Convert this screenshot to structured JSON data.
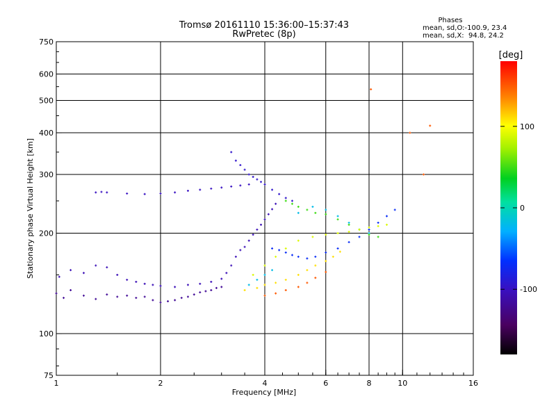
{
  "chart_data": {
    "type": "scatter",
    "title_line1": "Tromsø 20161110 15:36:00–15:37:43",
    "title_line2": "RwPretec (8p)",
    "xlabel": "Frequency [MHz]",
    "ylabel": "Stationary phase Virtual Height [km]",
    "x_scale": "log",
    "y_scale": "log",
    "xlim": [
      1,
      16
    ],
    "ylim": [
      75,
      750
    ],
    "x_ticks": [
      1,
      2,
      4,
      6,
      8,
      10,
      16
    ],
    "x_tick_labels": [
      "1",
      "2",
      "4",
      "6",
      "8",
      "10",
      "16"
    ],
    "x_gridlines": [
      2,
      4,
      6,
      8,
      10
    ],
    "y_ticks": [
      75,
      100,
      200,
      300,
      400,
      500,
      600,
      750
    ],
    "y_tick_labels": [
      "75",
      "100",
      "200",
      "300",
      "400",
      "500",
      "600",
      "750"
    ],
    "y_gridlines": [
      100,
      200,
      300,
      400,
      500,
      600
    ],
    "grid": true,
    "phases_box": {
      "title": "Phases",
      "line1": "mean, sd,O:-100.9, 23.4",
      "line2": "mean, sd,X:  94.8, 24.2"
    },
    "colorbar": {
      "label": "[deg]",
      "range": [
        -180,
        180
      ],
      "ticks": [
        100,
        0,
        -100
      ],
      "tick_labels": [
        "100",
        "0",
        "-100"
      ],
      "colormap": "rainbow (black → purple → blue → cyan → green → yellow → orange → red)"
    },
    "series": [
      {
        "phase_deg": -120,
        "points": [
          [
            1.0,
            132
          ],
          [
            1.05,
            128
          ],
          [
            1.1,
            135
          ],
          [
            1.2,
            130
          ],
          [
            1.3,
            127
          ],
          [
            1.4,
            131
          ],
          [
            1.5,
            129
          ],
          [
            1.6,
            130
          ],
          [
            1.7,
            128
          ],
          [
            1.8,
            129
          ],
          [
            1.9,
            126
          ],
          [
            2.0,
            124
          ],
          [
            2.1,
            125
          ],
          [
            2.2,
            126
          ],
          [
            2.3,
            128
          ],
          [
            2.4,
            129
          ],
          [
            2.5,
            131
          ],
          [
            2.6,
            133
          ],
          [
            2.7,
            134
          ],
          [
            2.8,
            135
          ],
          [
            2.9,
            137
          ],
          [
            3.0,
            138
          ]
        ]
      },
      {
        "phase_deg": -105,
        "points": [
          [
            1.02,
            148
          ],
          [
            1.1,
            155
          ],
          [
            1.2,
            152
          ],
          [
            1.3,
            160
          ],
          [
            1.4,
            158
          ],
          [
            1.5,
            150
          ],
          [
            1.6,
            145
          ],
          [
            1.7,
            143
          ],
          [
            1.8,
            141
          ],
          [
            1.9,
            140
          ],
          [
            2.0,
            139
          ],
          [
            2.2,
            138
          ],
          [
            2.4,
            140
          ],
          [
            2.6,
            141
          ],
          [
            2.8,
            143
          ],
          [
            3.0,
            146
          ],
          [
            3.1,
            152
          ],
          [
            3.2,
            160
          ],
          [
            3.3,
            170
          ],
          [
            3.4,
            178
          ],
          [
            3.5,
            182
          ],
          [
            3.6,
            190
          ],
          [
            3.7,
            198
          ],
          [
            3.8,
            205
          ],
          [
            3.9,
            212
          ],
          [
            4.0,
            220
          ],
          [
            4.1,
            228
          ],
          [
            4.2,
            236
          ],
          [
            4.3,
            245
          ]
        ]
      },
      {
        "phase_deg": -100,
        "points": [
          [
            1.3,
            265
          ],
          [
            1.35,
            266
          ],
          [
            1.4,
            265
          ],
          [
            1.6,
            263
          ],
          [
            1.8,
            262
          ],
          [
            2.0,
            263
          ],
          [
            2.2,
            265
          ],
          [
            2.4,
            268
          ],
          [
            2.6,
            270
          ],
          [
            2.8,
            272
          ],
          [
            3.0,
            274
          ],
          [
            3.2,
            276
          ],
          [
            3.4,
            278
          ],
          [
            3.6,
            280
          ]
        ]
      },
      {
        "phase_deg": -95,
        "points": [
          [
            3.2,
            350
          ],
          [
            3.3,
            330
          ],
          [
            3.4,
            320
          ],
          [
            3.5,
            310
          ],
          [
            3.6,
            300
          ],
          [
            3.7,
            295
          ],
          [
            3.8,
            290
          ],
          [
            3.9,
            285
          ],
          [
            4.0,
            280
          ],
          [
            4.2,
            270
          ],
          [
            4.4,
            262
          ],
          [
            4.6,
            255
          ],
          [
            4.8,
            250
          ]
        ]
      },
      {
        "phase_deg": -70,
        "points": [
          [
            4.2,
            180
          ],
          [
            4.4,
            178
          ],
          [
            4.6,
            175
          ],
          [
            4.8,
            172
          ],
          [
            5.0,
            170
          ],
          [
            5.3,
            168
          ],
          [
            5.6,
            170
          ],
          [
            6.0,
            175
          ],
          [
            6.5,
            180
          ],
          [
            7.0,
            188
          ],
          [
            7.5,
            195
          ],
          [
            8.0,
            205
          ],
          [
            8.5,
            215
          ],
          [
            9.0,
            225
          ],
          [
            9.5,
            235
          ]
        ]
      },
      {
        "phase_deg": -20,
        "points": [
          [
            3.6,
            140
          ],
          [
            3.8,
            145
          ],
          [
            4.0,
            150
          ],
          [
            4.2,
            155
          ],
          [
            5.0,
            230
          ],
          [
            5.5,
            240
          ],
          [
            6.0,
            235
          ],
          [
            6.5,
            225
          ],
          [
            7.0,
            215
          ],
          [
            7.5,
            205
          ],
          [
            8.0,
            200
          ]
        ]
      },
      {
        "phase_deg": 50,
        "points": [
          [
            4.6,
            250
          ],
          [
            4.8,
            245
          ],
          [
            5.0,
            240
          ],
          [
            5.3,
            235
          ],
          [
            5.6,
            230
          ],
          [
            6.0,
            228
          ],
          [
            6.5,
            220
          ],
          [
            7.0,
            212
          ],
          [
            7.5,
            205
          ],
          [
            8.0,
            198
          ],
          [
            8.5,
            195
          ]
        ]
      },
      {
        "phase_deg": 90,
        "points": [
          [
            3.7,
            150
          ],
          [
            4.0,
            160
          ],
          [
            4.3,
            170
          ],
          [
            4.6,
            180
          ],
          [
            5.0,
            190
          ],
          [
            5.5,
            195
          ],
          [
            6.0,
            198
          ],
          [
            6.5,
            200
          ],
          [
            7.0,
            202
          ],
          [
            7.5,
            205
          ],
          [
            8.0,
            208
          ],
          [
            8.5,
            210
          ],
          [
            9.0,
            212
          ]
        ]
      },
      {
        "phase_deg": 110,
        "points": [
          [
            3.5,
            135
          ],
          [
            3.8,
            137
          ],
          [
            4.0,
            140
          ],
          [
            4.3,
            142
          ],
          [
            4.6,
            145
          ],
          [
            5.0,
            150
          ],
          [
            5.3,
            155
          ],
          [
            5.6,
            160
          ],
          [
            6.0,
            165
          ],
          [
            6.3,
            170
          ],
          [
            6.6,
            176
          ]
        ]
      },
      {
        "phase_deg": 150,
        "points": [
          [
            4.0,
            130
          ],
          [
            4.3,
            132
          ],
          [
            4.6,
            135
          ],
          [
            5.0,
            138
          ],
          [
            5.3,
            142
          ],
          [
            5.6,
            147
          ],
          [
            6.0,
            153
          ],
          [
            8.1,
            540
          ],
          [
            10.5,
            400
          ],
          [
            11.5,
            300
          ],
          [
            12.0,
            420
          ]
        ]
      }
    ]
  }
}
